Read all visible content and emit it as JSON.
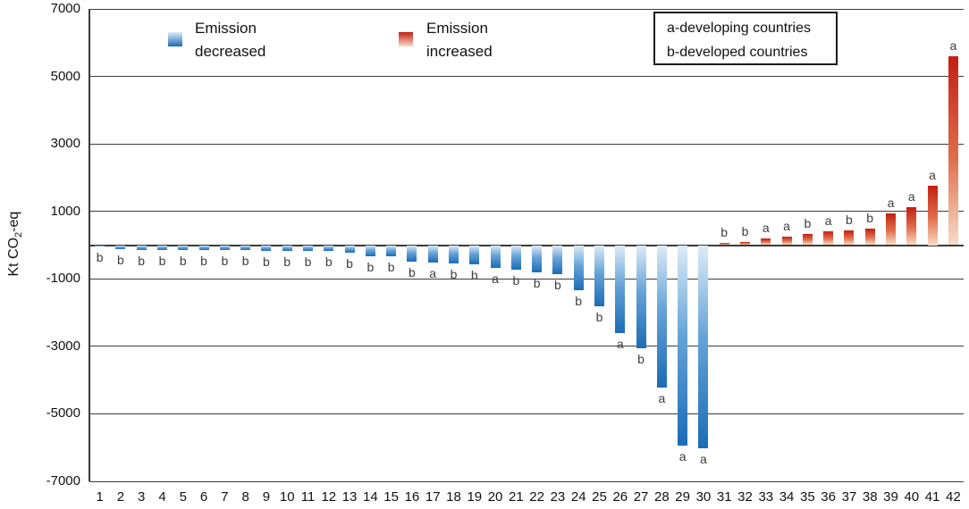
{
  "y_axis": {
    "title_pre": "Kt CO",
    "title_sub": "2",
    "title_post": "-eq"
  },
  "legend": {
    "decreased_line1": "Emission",
    "decreased_line2": "decreased",
    "increased_line1": "Emission",
    "increased_line2": "increased"
  },
  "key_box": {
    "line1": "a-developing countries",
    "line2": "b-developed countries"
  },
  "colors": {
    "decreased_dark": "#1b6cb5",
    "decreased_mid": "#66a3d8",
    "decreased_light": "#ddebf7",
    "increased_dark": "#c21f12",
    "increased_mid": "#e0704d",
    "increased_light": "#f8dcc8",
    "grid": "#3c3c3c",
    "text": "#111111",
    "bar_label_text": "#3d3d3d"
  },
  "chart_data": {
    "type": "bar",
    "title": "",
    "xlabel": "",
    "ylabel": "Kt CO2-eq",
    "ylim": [
      -7000,
      7000
    ],
    "yticks": [
      7000,
      5000,
      3000,
      1000,
      -1000,
      -3000,
      -5000,
      -7000
    ],
    "grid": true,
    "legend_entries": [
      "Emission decreased",
      "Emission increased"
    ],
    "legend_note": "negative values = emission decreased (blue bars), positive values = emission increased (red bars)",
    "annotations": [
      "a-developing countries",
      "b-developed countries"
    ],
    "categories": [
      "1",
      "2",
      "3",
      "4",
      "5",
      "6",
      "7",
      "8",
      "9",
      "10",
      "11",
      "12",
      "13",
      "14",
      "15",
      "16",
      "17",
      "18",
      "19",
      "20",
      "21",
      "22",
      "23",
      "24",
      "25",
      "26",
      "27",
      "28",
      "29",
      "30",
      "31",
      "32",
      "33",
      "34",
      "35",
      "36",
      "37",
      "38",
      "39",
      "40",
      "41",
      "42"
    ],
    "values": [
      -40,
      -130,
      -140,
      -140,
      -150,
      -150,
      -155,
      -155,
      -160,
      -165,
      -170,
      -180,
      -220,
      -320,
      -340,
      -490,
      -515,
      -540,
      -565,
      -665,
      -715,
      -800,
      -860,
      -1340,
      -1820,
      -2620,
      -3060,
      -4230,
      -5930,
      -6030,
      60,
      90,
      200,
      260,
      330,
      420,
      445,
      480,
      940,
      1120,
      1750,
      5600
    ],
    "country_types": [
      "b",
      "b",
      "b",
      "b",
      "b",
      "b",
      "b",
      "b",
      "b",
      "b",
      "b",
      "b",
      "b",
      "b",
      "b",
      "b",
      "a",
      "b",
      "b",
      "a",
      "b",
      "b",
      "b",
      "b",
      "b",
      "a",
      "b",
      "a",
      "a",
      "a",
      "b",
      "b",
      "a",
      "a",
      "b",
      "a",
      "b",
      "b",
      "a",
      "a",
      "a",
      "a"
    ]
  }
}
